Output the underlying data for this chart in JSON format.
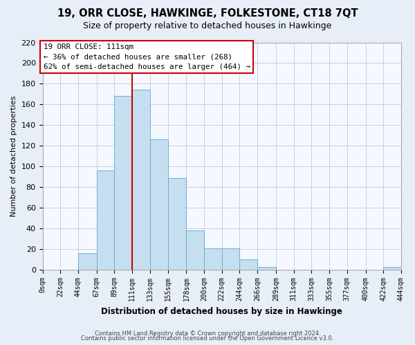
{
  "title": "19, ORR CLOSE, HAWKINGE, FOLKESTONE, CT18 7QT",
  "subtitle": "Size of property relative to detached houses in Hawkinge",
  "xlabel": "Distribution of detached houses by size in Hawkinge",
  "ylabel": "Number of detached properties",
  "bar_edges": [
    0,
    22,
    44,
    67,
    89,
    111,
    133,
    155,
    178,
    200,
    222,
    244,
    266,
    289,
    311,
    333,
    355,
    377,
    400,
    422,
    444
  ],
  "bar_heights": [
    0,
    0,
    16,
    96,
    168,
    174,
    126,
    89,
    38,
    21,
    21,
    10,
    3,
    0,
    0,
    0,
    0,
    0,
    0,
    3
  ],
  "bar_color": "#c5dff0",
  "bar_edgecolor": "#6aaed6",
  "vline_x": 111,
  "vline_color": "#cc0000",
  "annotation_title": "19 ORR CLOSE: 111sqm",
  "annotation_line1": "← 36% of detached houses are smaller (268)",
  "annotation_line2": "62% of semi-detached houses are larger (464) →",
  "annotation_box_edgecolor": "#cc0000",
  "tick_labels": [
    "0sqm",
    "22sqm",
    "44sqm",
    "67sqm",
    "89sqm",
    "111sqm",
    "133sqm",
    "155sqm",
    "178sqm",
    "200sqm",
    "222sqm",
    "244sqm",
    "266sqm",
    "289sqm",
    "311sqm",
    "333sqm",
    "355sqm",
    "377sqm",
    "400sqm",
    "422sqm",
    "444sqm"
  ],
  "ylim": [
    0,
    220
  ],
  "yticks": [
    0,
    20,
    40,
    60,
    80,
    100,
    120,
    140,
    160,
    180,
    200,
    220
  ],
  "footer1": "Contains HM Land Registry data © Crown copyright and database right 2024.",
  "footer2": "Contains public sector information licensed under the Open Government Licence v3.0.",
  "bg_color": "#e8eef8",
  "plot_bg_color": "#f5f8ff",
  "grid_color": "#c8d0dc"
}
